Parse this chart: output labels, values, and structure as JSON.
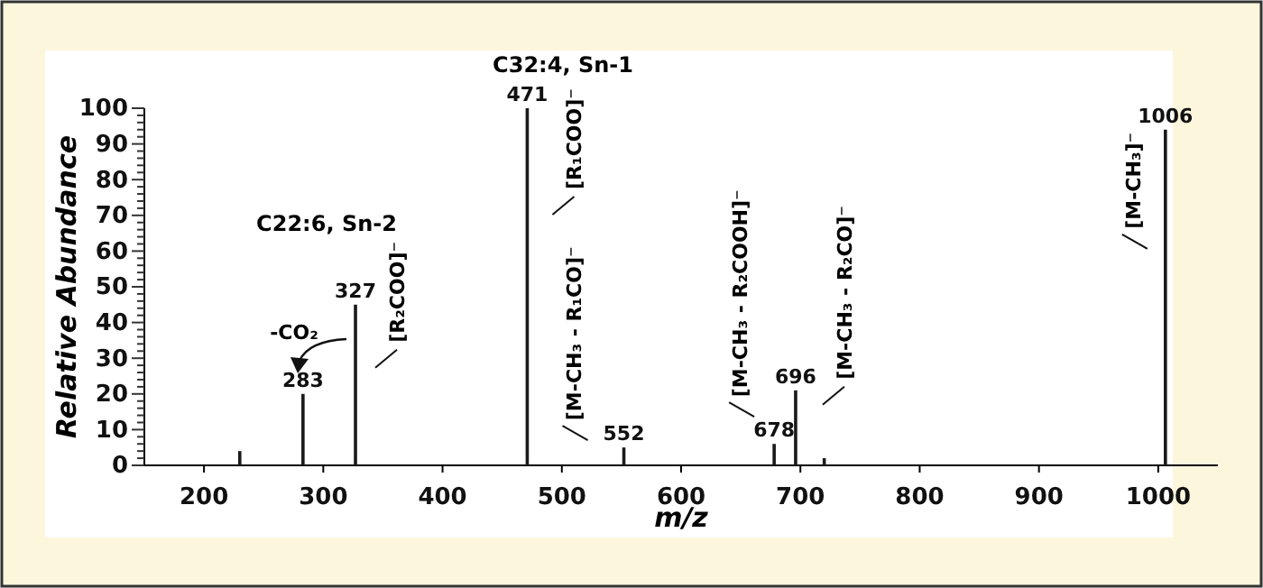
{
  "chart_data": {
    "type": "bar",
    "xlabel": "m/z",
    "ylabel": "Relative Abundance",
    "x": [
      230,
      283,
      327,
      471,
      552,
      678,
      696,
      720,
      1006
    ],
    "values": [
      4,
      20,
      45,
      100,
      5,
      6,
      21,
      2,
      94
    ],
    "color": "#1a1a1a",
    "xlim": [
      150,
      1050
    ],
    "xticks": [
      200,
      300,
      400,
      500,
      600,
      700,
      800,
      900,
      1000
    ],
    "ylim": [
      0,
      100
    ],
    "yticks": [
      0,
      {
        "value": 2,
        "label": null
      },
      {
        "value": 4,
        "label": null
      },
      {
        "value": 6,
        "label": null
      },
      {
        "value": 8,
        "label": null
      },
      10,
      {
        "value": 12,
        "label": null
      },
      {
        "value": 14,
        "label": null
      },
      {
        "value": 16,
        "label": null
      },
      {
        "value": 18,
        "label": null
      },
      20,
      {
        "value": 22,
        "label": null
      },
      {
        "value": 24,
        "label": null
      },
      {
        "value": 26,
        "label": null
      },
      {
        "value": 28,
        "label": null
      },
      30,
      {
        "value": 32,
        "label": null
      },
      {
        "value": 34,
        "label": null
      },
      {
        "value": 36,
        "label": null
      },
      {
        "value": 38,
        "label": null
      },
      40,
      {
        "value": 42,
        "label": null
      },
      {
        "value": 44,
        "label": null
      },
      {
        "value": 46,
        "label": null
      },
      {
        "value": 48,
        "label": null
      },
      50,
      {
        "value": 52,
        "label": null
      },
      {
        "value": 54,
        "label": null
      },
      {
        "value": 56,
        "label": null
      },
      {
        "value": 58,
        "label": null
      },
      60,
      {
        "value": 62,
        "label": null
      },
      {
        "value": 64,
        "label": null
      },
      {
        "value": 66,
        "label": null
      },
      {
        "value": 68,
        "label": null
      },
      70,
      {
        "value": 72,
        "label": null
      },
      {
        "value": 74,
        "label": null
      },
      {
        "value": 76,
        "label": null
      },
      {
        "value": 78,
        "label": null
      },
      80,
      {
        "value": 82,
        "label": null
      },
      {
        "value": 84,
        "label": null
      },
      {
        "value": 86,
        "label": null
      },
      {
        "value": 88,
        "label": null
      },
      90,
      {
        "value": 92,
        "label": null
      },
      {
        "value": 94,
        "label": null
      },
      {
        "value": 96,
        "label": null
      },
      {
        "value": 98,
        "label": null
      },
      100
    ],
    "grid": false,
    "annotations": [
      "C32:4, Sn-1",
      "C22:6, Sn-2",
      "-CO₂",
      {
        "text": "283",
        "x": 283,
        "y": 20
      },
      {
        "text": "327",
        "x": 327,
        "y": 45
      },
      {
        "text": "471",
        "x": 471,
        "y": 100
      },
      {
        "text": "552",
        "x": 552,
        "y": 5
      },
      {
        "text": "678",
        "x": 678,
        "y": 6
      },
      {
        "text": "696",
        "x": 696,
        "y": 21
      },
      {
        "text": "1006",
        "x": 1006,
        "y": 94
      },
      {
        "text": "[R₁COO]⁻",
        "x": 471,
        "y": 100
      },
      {
        "text": "[R₂COO]⁻",
        "x": 327,
        "y": 45
      },
      {
        "text": "[M-CH₃ - R₁CO]⁻",
        "x": 552,
        "y": 5
      },
      {
        "text": "[M-CH₃ - R₂COOH]⁻",
        "x": 678,
        "y": 6
      },
      {
        "text": "[M-CH₃ - R₂CO]⁻",
        "x": 696,
        "y": 21
      },
      {
        "text": "[M-CH₃]⁻",
        "x": 1006,
        "y": 94
      }
    ]
  }
}
